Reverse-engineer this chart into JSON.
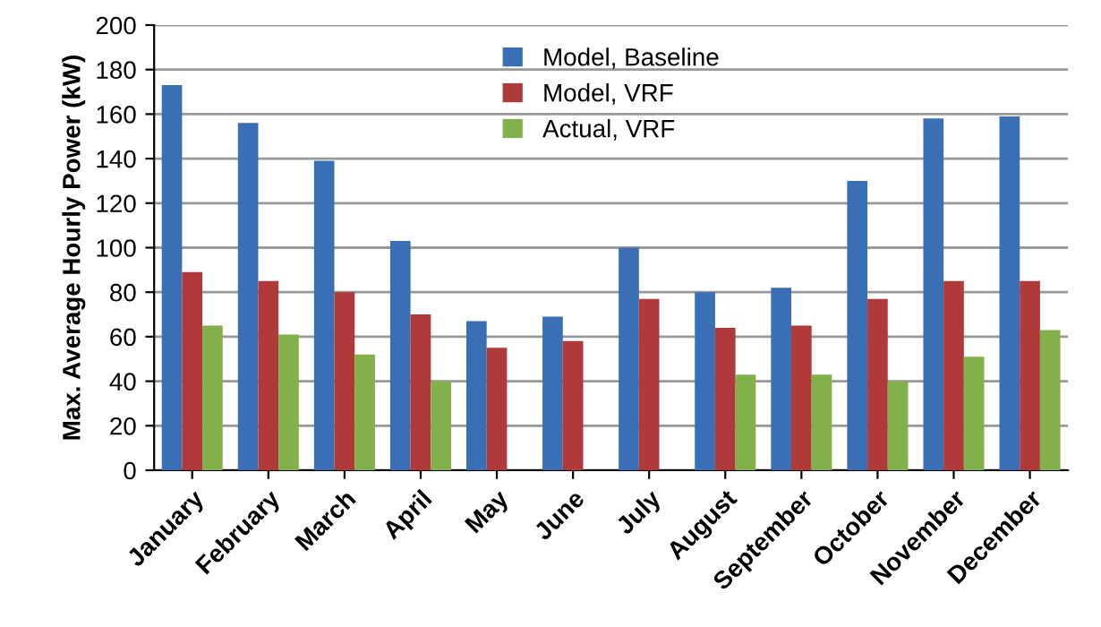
{
  "chart_data": {
    "type": "bar",
    "ylabel": "Max. Average Hourly Power (kW)",
    "categories": [
      "January",
      "February",
      "March",
      "April",
      "May",
      "June",
      "July",
      "August",
      "September",
      "October",
      "November",
      "December"
    ],
    "series": [
      {
        "name": "Model, Baseline",
        "color": "#3a6fb5",
        "values": [
          173,
          156,
          139,
          103,
          67,
          69,
          100,
          80,
          82,
          130,
          158,
          159
        ]
      },
      {
        "name": "Model, VRF",
        "color": "#b03a3a",
        "values": [
          89,
          85,
          80,
          70,
          55,
          58,
          77,
          64,
          65,
          77,
          85,
          85
        ]
      },
      {
        "name": "Actual, VRF",
        "color": "#82b04a",
        "values": [
          65,
          61,
          52,
          40,
          null,
          null,
          null,
          43,
          43,
          40,
          51,
          63
        ]
      }
    ],
    "ylim": [
      0,
      200
    ],
    "yticks": [
      0,
      20,
      40,
      60,
      80,
      100,
      120,
      140,
      160,
      180,
      200
    ],
    "grid": "y",
    "legend": "top"
  }
}
